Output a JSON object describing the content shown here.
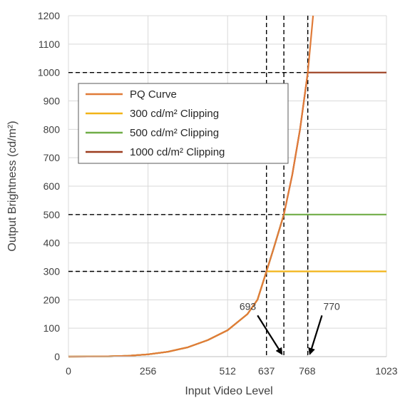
{
  "chart_data": {
    "type": "line",
    "title": "",
    "xlabel": "Input Video Level",
    "ylabel": "Output Brightness (cd/m²)",
    "xlim": [
      0,
      1023
    ],
    "ylim": [
      0,
      1200
    ],
    "x_ticks": [
      0,
      256,
      512,
      637,
      768,
      1023
    ],
    "y_ticks": [
      0,
      100,
      200,
      300,
      400,
      500,
      600,
      700,
      800,
      900,
      1000,
      1100,
      1200
    ],
    "grid": true,
    "legend_position": "upper-left",
    "series": [
      {
        "name": "PQ Curve",
        "color": "#e07b39",
        "x": [
          0,
          64,
          128,
          192,
          256,
          320,
          384,
          448,
          512,
          576,
          608,
          637,
          660,
          693,
          720,
          745,
          770,
          787
        ],
        "y": [
          0,
          0.2,
          1,
          3,
          8,
          17,
          33,
          58,
          93,
          150,
          200,
          300,
          380,
          500,
          640,
          800,
          1000,
          1200
        ]
      },
      {
        "name": "300 cd/m² Clipping",
        "color": "#f2b418",
        "x": [
          0,
          64,
          128,
          192,
          256,
          320,
          384,
          448,
          512,
          576,
          608,
          637,
          1023
        ],
        "y": [
          0,
          0.2,
          1,
          3,
          8,
          17,
          33,
          58,
          93,
          150,
          200,
          300,
          300
        ]
      },
      {
        "name": "500 cd/m² Clipping",
        "color": "#70ad47",
        "x": [
          0,
          64,
          128,
          192,
          256,
          320,
          384,
          448,
          512,
          576,
          608,
          637,
          660,
          693,
          1023
        ],
        "y": [
          0,
          0.2,
          1,
          3,
          8,
          17,
          33,
          58,
          93,
          150,
          200,
          300,
          380,
          500,
          500
        ]
      },
      {
        "name": "1000 cd/m² Clipping",
        "color": "#9c3d1f",
        "x": [
          0,
          64,
          128,
          192,
          256,
          320,
          384,
          448,
          512,
          576,
          608,
          637,
          660,
          693,
          720,
          745,
          770,
          1023
        ],
        "y": [
          0,
          0.2,
          1,
          3,
          8,
          17,
          33,
          58,
          93,
          150,
          200,
          300,
          380,
          500,
          640,
          800,
          1000,
          1000
        ]
      }
    ],
    "reference_lines": {
      "horizontal": [
        300,
        500,
        1000
      ],
      "vertical": [
        637,
        693,
        770
      ]
    },
    "annotations": [
      {
        "text": "693",
        "x": 693,
        "y": 0,
        "label_x": 590,
        "label_y": 150
      },
      {
        "text": "770",
        "x": 770,
        "y": 0,
        "label_x": 820,
        "label_y": 150
      }
    ]
  }
}
